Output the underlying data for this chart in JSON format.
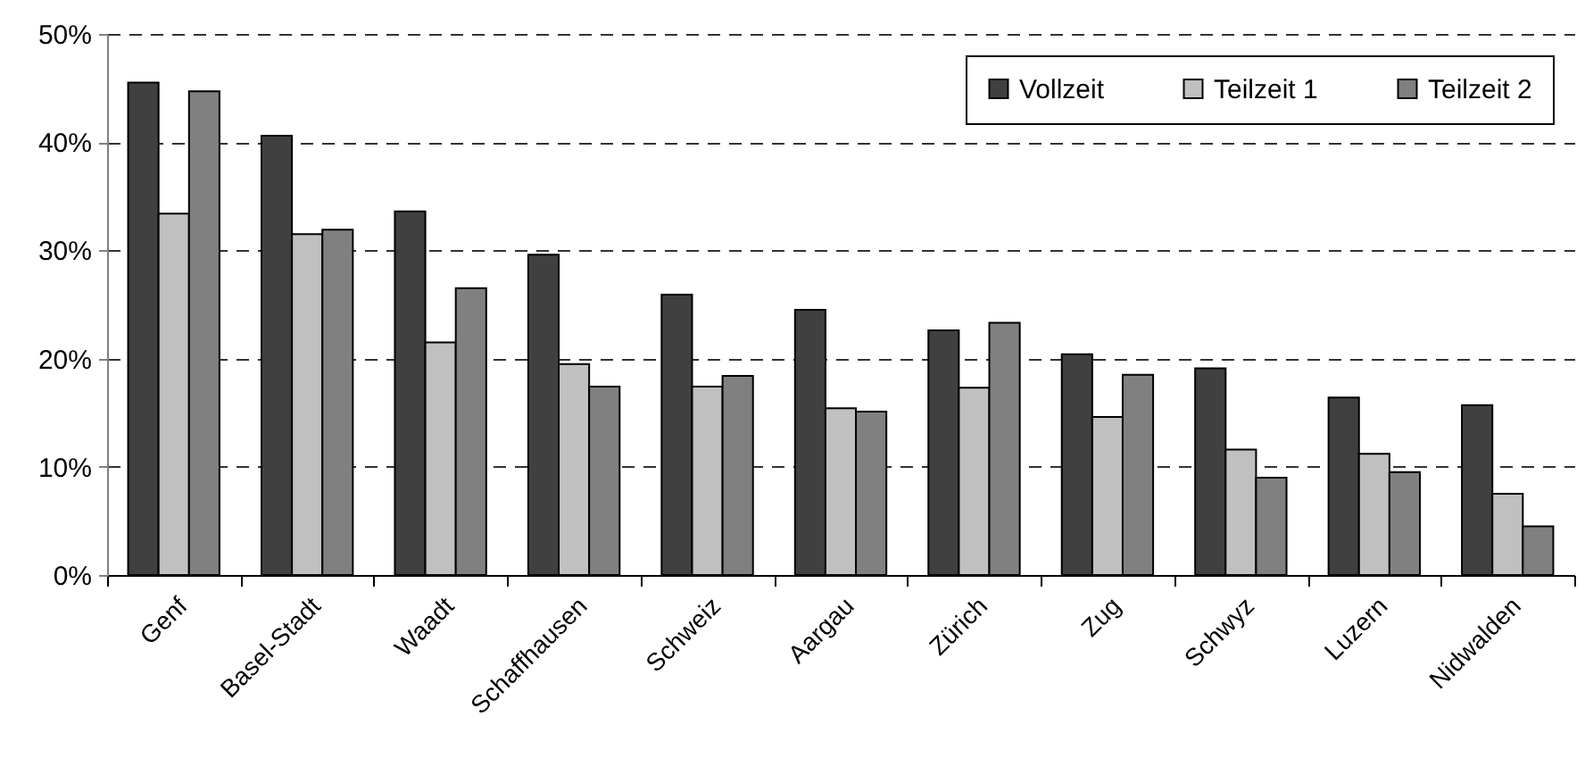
{
  "chart_data": {
    "type": "bar",
    "categories": [
      "Genf",
      "Basel-Stadt",
      "Waadt",
      "Schaffhausen",
      "Schweiz",
      "Aargau",
      "Zürich",
      "Zug",
      "Schwyz",
      "Luzern",
      "Nidwalden"
    ],
    "series": [
      {
        "name": "Vollzeit",
        "color": "#404040",
        "values": [
          45.5,
          40.6,
          33.6,
          29.6,
          25.9,
          24.5,
          22.6,
          20.4,
          19.1,
          16.4,
          15.7
        ]
      },
      {
        "name": "Teilzeit 1",
        "color": "#c0c0c0",
        "values": [
          33.4,
          31.5,
          21.5,
          19.5,
          17.4,
          15.4,
          17.3,
          14.6,
          11.6,
          11.2,
          7.5
        ]
      },
      {
        "name": "Teilzeit 2",
        "color": "#808080",
        "values": [
          44.7,
          31.9,
          26.5,
          17.4,
          18.4,
          15.1,
          23.3,
          18.5,
          9.0,
          9.5,
          4.5
        ]
      }
    ],
    "ylim": [
      0,
      50
    ],
    "yticks": [
      {
        "value": 0,
        "label": "0%"
      },
      {
        "value": 10,
        "label": "10%"
      },
      {
        "value": 20,
        "label": "20%"
      },
      {
        "value": 30,
        "label": "30%"
      },
      {
        "value": 40,
        "label": "40%"
      },
      {
        "value": 50,
        "label": "50%"
      }
    ],
    "grid": "y",
    "legend": "top right"
  }
}
